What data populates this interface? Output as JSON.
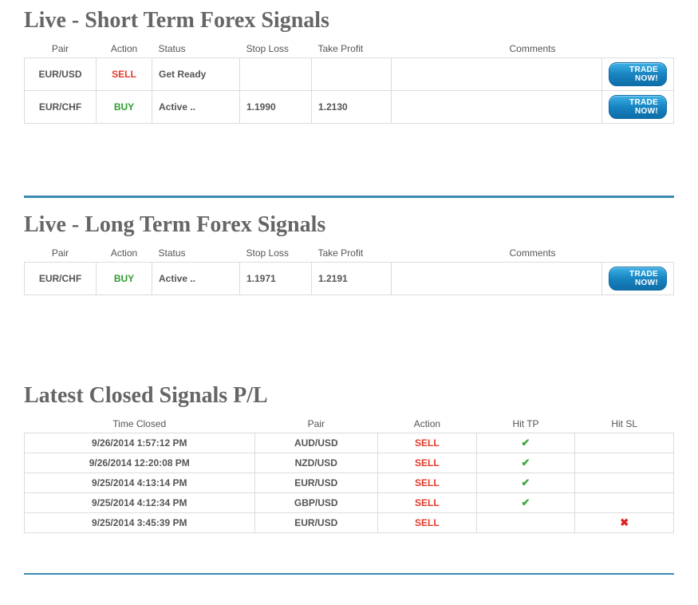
{
  "short": {
    "title": "Live - Short Term Forex Signals",
    "headers": {
      "pair": "Pair",
      "action": "Action",
      "status": "Status",
      "sl": "Stop Loss",
      "tp": "Take Profit",
      "comments": "Comments"
    },
    "rows": [
      {
        "pair": "EUR/USD",
        "action": "SELL",
        "action_class": "action-sell",
        "status": "Get Ready",
        "sl": "",
        "tp": "",
        "btn": "TRADE NOW!"
      },
      {
        "pair": "EUR/CHF",
        "action": "BUY",
        "action_class": "action-buy",
        "status": "Active ..",
        "sl": "1.1990",
        "tp": "1.2130",
        "btn": "TRADE NOW!"
      }
    ]
  },
  "long": {
    "title": "Live - Long Term Forex Signals",
    "headers": {
      "pair": "Pair",
      "action": "Action",
      "status": "Status",
      "sl": "Stop Loss",
      "tp": "Take Profit",
      "comments": "Comments"
    },
    "rows": [
      {
        "pair": "EUR/CHF",
        "action": "BUY",
        "action_class": "action-buy",
        "status": "Active ..",
        "sl": "1.1971",
        "tp": "1.2191",
        "btn": "TRADE NOW!"
      }
    ]
  },
  "closed": {
    "title": "Latest Closed Signals P/L",
    "headers": {
      "time": "Time Closed",
      "pair": "Pair",
      "action": "Action",
      "hit_tp": "Hit TP",
      "hit_sl": "Hit SL"
    },
    "rows": [
      {
        "time": "9/26/2014 1:57:12 PM",
        "pair": "AUD/USD",
        "action": "SELL",
        "hit_tp": true,
        "hit_sl": false
      },
      {
        "time": "9/26/2014 12:20:08 PM",
        "pair": "NZD/USD",
        "action": "SELL",
        "hit_tp": true,
        "hit_sl": false
      },
      {
        "time": "9/25/2014 4:13:14 PM",
        "pair": "EUR/USD",
        "action": "SELL",
        "hit_tp": true,
        "hit_sl": false
      },
      {
        "time": "9/25/2014 4:12:34 PM",
        "pair": "GBP/USD",
        "action": "SELL",
        "hit_tp": true,
        "hit_sl": false
      },
      {
        "time": "9/25/2014 3:45:39 PM",
        "pair": "EUR/USD",
        "action": "SELL",
        "hit_tp": false,
        "hit_sl": true
      }
    ]
  },
  "colors": {
    "heading": "#666666",
    "divider": "#3b89b5",
    "sell": "#e23a2a",
    "buy": "#2e9b2e",
    "border": "#dcdcdc",
    "btn_top": "#3db1e6",
    "btn_bottom": "#0e6da7"
  }
}
